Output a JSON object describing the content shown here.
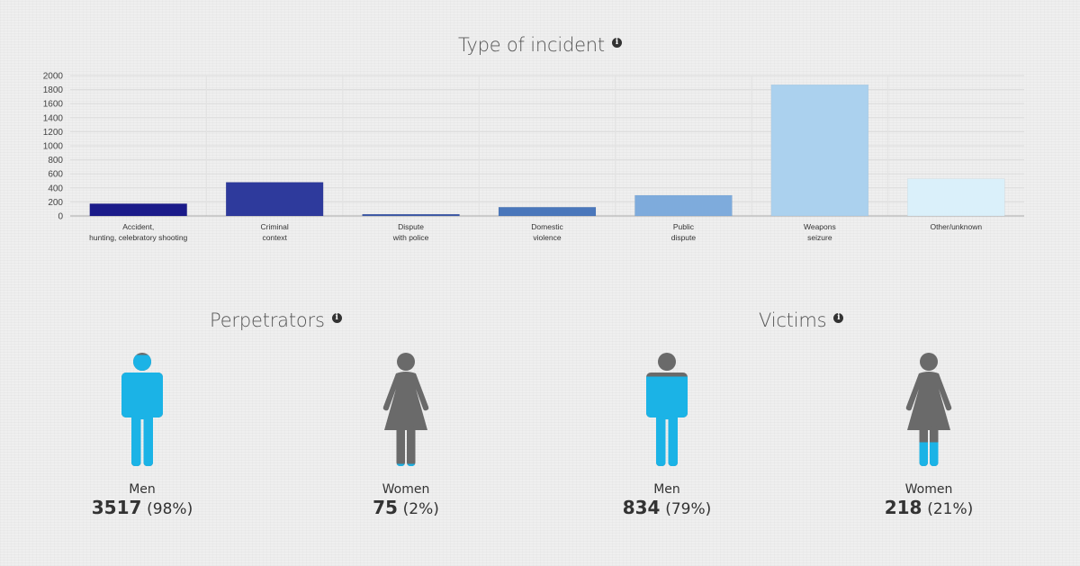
{
  "incident": {
    "title": "Type of incident"
  },
  "chart_data": {
    "type": "bar",
    "title": "Type of incident",
    "categories": [
      [
        "Accident,",
        "hunting, celebratory shooting"
      ],
      [
        "Criminal",
        "context"
      ],
      [
        "Dispute",
        "with police"
      ],
      [
        "Domestic",
        "violence"
      ],
      [
        "Public",
        "dispute"
      ],
      [
        "Weapons",
        "seizure"
      ],
      [
        "Other/unknown"
      ]
    ],
    "values": [
      175,
      480,
      25,
      125,
      295,
      1870,
      530
    ],
    "colors": [
      "#1b1b8a",
      "#2e3a9c",
      "#3e5aa8",
      "#4a77bb",
      "#7eabdc",
      "#abd1ee",
      "#daf0fa"
    ],
    "ylim": [
      0,
      2000
    ],
    "yticks": [
      0,
      200,
      400,
      600,
      800,
      1000,
      1200,
      1400,
      1600,
      1800,
      2000
    ],
    "grid": true,
    "xlabel": "",
    "ylabel": ""
  },
  "perpetrators": {
    "title": "Perpetrators",
    "men": {
      "label": "Men",
      "count": "3517",
      "pct": "(98%)",
      "fill": 0.98
    },
    "women": {
      "label": "Women",
      "count": "75",
      "pct": "(2%)",
      "fill": 0.02
    }
  },
  "victims": {
    "title": "Victims",
    "men": {
      "label": "Men",
      "count": "834",
      "pct": "(79%)",
      "fill": 0.79
    },
    "women": {
      "label": "Women",
      "count": "218",
      "pct": "(21%)",
      "fill": 0.21
    }
  },
  "colors": {
    "fill": "#1bb3e6",
    "empty": "#6a6a6a"
  },
  "icons": [
    "info-icon",
    "man-icon",
    "woman-icon"
  ]
}
